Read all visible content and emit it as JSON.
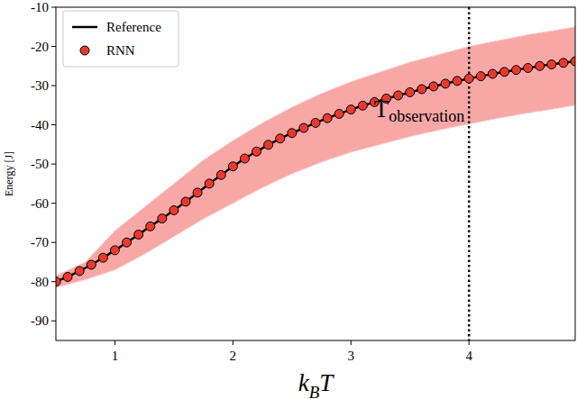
{
  "chart_data": {
    "type": "line",
    "ylabel": "Energy [J]",
    "xlabel": {
      "text": "k",
      "subscript": "B",
      "suffix": "T"
    },
    "xlim": [
      0.5,
      4.9
    ],
    "ylim": [
      -95,
      -10
    ],
    "xticks": [
      1,
      2,
      3,
      4
    ],
    "yticks": [
      -90,
      -80,
      -70,
      -60,
      -50,
      -40,
      -30,
      -20,
      -10
    ],
    "legend": "upper-left",
    "annotation": {
      "text": "T",
      "subscript": "observation",
      "x": 4,
      "line_style": "dotted"
    },
    "band": {
      "color": "#f8a7a7",
      "x": [
        0.5,
        0.75,
        1.0,
        1.25,
        1.5,
        1.75,
        2.0,
        2.25,
        2.5,
        2.75,
        3.0,
        3.25,
        3.5,
        3.75,
        4.0,
        4.25,
        4.5,
        4.75,
        4.9
      ],
      "upper": [
        -78.5,
        -75,
        -67,
        -61,
        -55,
        -49,
        -44,
        -39.5,
        -35.5,
        -32,
        -29,
        -26.5,
        -24,
        -22,
        -20,
        -18.5,
        -17,
        -15.8,
        -15
      ],
      "lower": [
        -81.5,
        -79.5,
        -77,
        -73,
        -68.5,
        -64,
        -60,
        -56,
        -52.5,
        -49.5,
        -47,
        -45,
        -43,
        -41.3,
        -39.8,
        -38.3,
        -37,
        -35.8,
        -35
      ]
    },
    "x": [
      0.5,
      0.6,
      0.7,
      0.8,
      0.9,
      1.0,
      1.1,
      1.2,
      1.3,
      1.4,
      1.5,
      1.6,
      1.7,
      1.8,
      1.9,
      2.0,
      2.1,
      2.2,
      2.3,
      2.4,
      2.5,
      2.6,
      2.7,
      2.8,
      2.9,
      3.0,
      3.1,
      3.2,
      3.3,
      3.4,
      3.5,
      3.6,
      3.7,
      3.8,
      3.9,
      4.0,
      4.1,
      4.2,
      4.3,
      4.4,
      4.5,
      4.6,
      4.7,
      4.8,
      4.9
    ],
    "series": [
      {
        "name": "Reference",
        "type": "line",
        "color": "#000000",
        "line_style": "solid",
        "values": [
          -80.0,
          -78.8,
          -77.3,
          -75.7,
          -73.9,
          -72.0,
          -70.0,
          -68.0,
          -65.9,
          -63.9,
          -61.8,
          -59.6,
          -57.3,
          -55.0,
          -52.8,
          -50.6,
          -48.6,
          -46.8,
          -45.1,
          -43.5,
          -42.1,
          -40.8,
          -39.5,
          -38.3,
          -37.2,
          -36.1,
          -35.1,
          -34.2,
          -33.3,
          -32.5,
          -31.7,
          -30.9,
          -30.2,
          -29.5,
          -28.8,
          -28.2,
          -27.6,
          -27.0,
          -26.5,
          -26.0,
          -25.5,
          -25.0,
          -24.6,
          -24.2,
          -23.8
        ]
      },
      {
        "name": "RNN",
        "type": "scatter",
        "color": "#e8392c",
        "marker": "circle",
        "values": [
          -80.0,
          -78.8,
          -77.3,
          -75.7,
          -73.9,
          -72.0,
          -70.0,
          -68.0,
          -65.9,
          -63.9,
          -61.8,
          -59.6,
          -57.3,
          -55.0,
          -52.8,
          -50.6,
          -48.6,
          -46.8,
          -45.1,
          -43.5,
          -42.1,
          -40.8,
          -39.5,
          -38.3,
          -37.2,
          -36.1,
          -35.1,
          -34.2,
          -33.3,
          -32.5,
          -31.7,
          -30.9,
          -30.2,
          -29.5,
          -28.8,
          -28.2,
          -27.6,
          -27.0,
          -26.5,
          -26.0,
          -25.5,
          -25.0,
          -24.6,
          -24.2,
          -23.8
        ]
      }
    ]
  }
}
